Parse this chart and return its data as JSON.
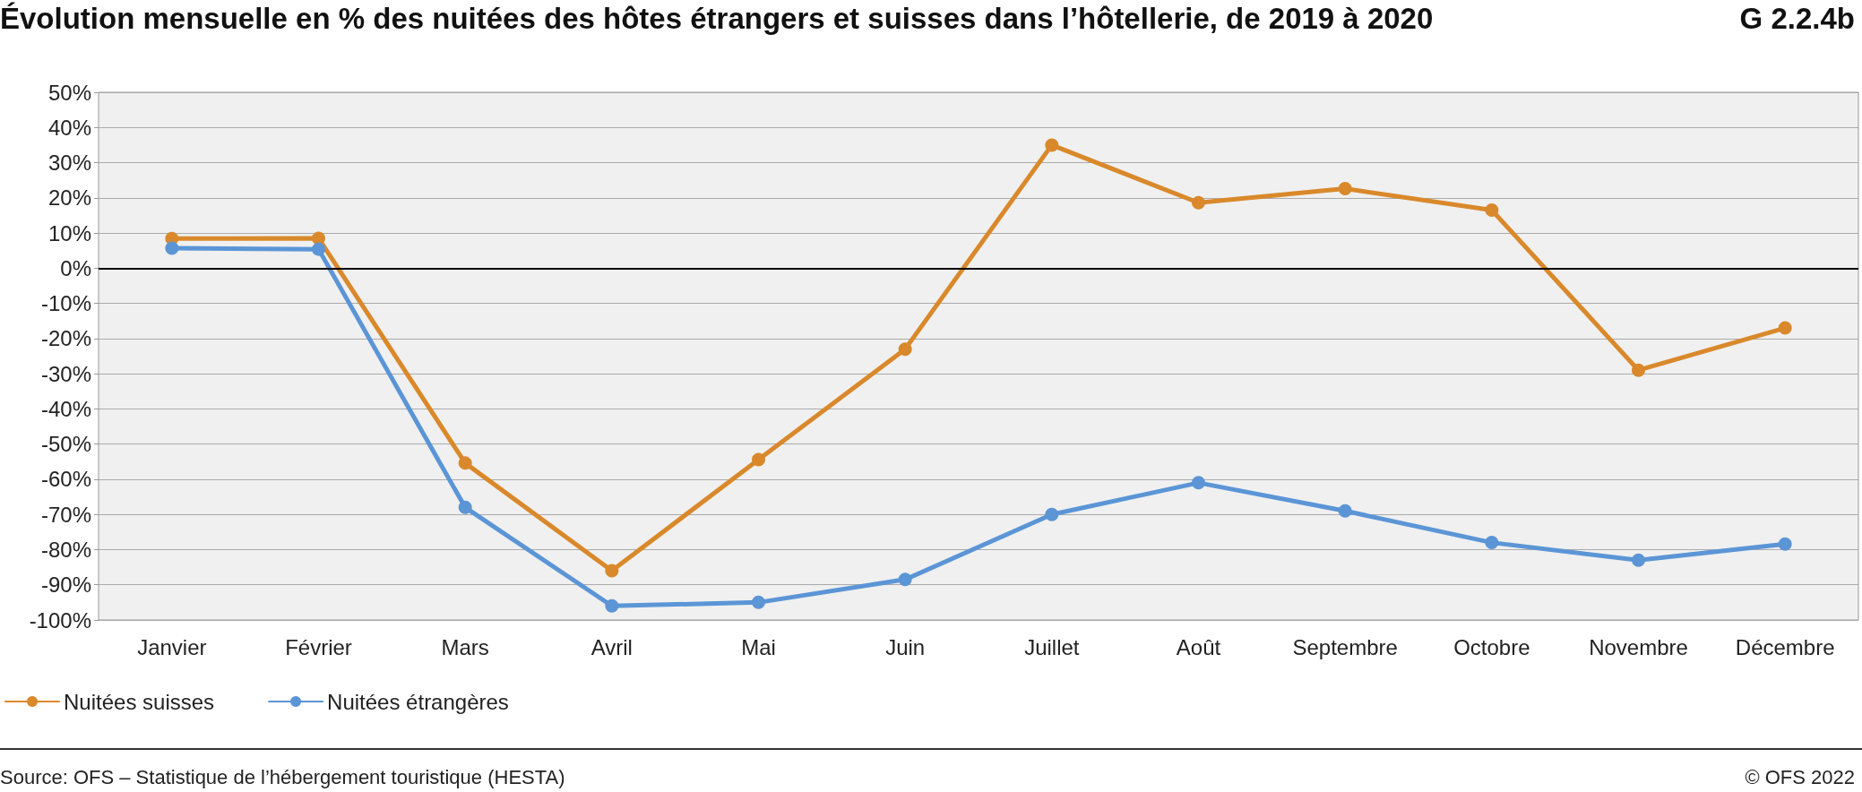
{
  "chart_data": {
    "type": "line",
    "title": "Évolution mensuelle en % des nuitées des hôtes étrangers et suisses dans l’hôtellerie, de 2019 à 2020",
    "subtitle": "G 2.2.4b",
    "categories": [
      "Janvier",
      "Février",
      "Mars",
      "Avril",
      "Mai",
      "Juin",
      "Juillet",
      "Août",
      "Septembre",
      "Octobre",
      "Novembre",
      "Décembre"
    ],
    "series": [
      {
        "name": "Nuitées suisses",
        "color": "#d9892b",
        "values": [
          8.4,
          8.5,
          -55.4,
          -86,
          -54.4,
          -23,
          35,
          18.6,
          22.6,
          16.5,
          -29,
          -17
        ]
      },
      {
        "name": "Nuitées étrangères",
        "color": "#5b95d6",
        "values": [
          5.7,
          5.4,
          -68,
          -96,
          -95,
          -88.5,
          -70,
          -61,
          -69,
          -78,
          -83,
          -78.4
        ]
      }
    ],
    "ylim": [
      -100,
      50
    ],
    "yticks": [
      {
        "value": -100,
        "label": "-100%"
      },
      {
        "value": -90,
        "label": "-90%"
      },
      {
        "value": -80,
        "label": "-80%"
      },
      {
        "value": -70,
        "label": "-70%"
      },
      {
        "value": -60,
        "label": "-60%"
      },
      {
        "value": -50,
        "label": "-50%"
      },
      {
        "value": -40,
        "label": "-40%"
      },
      {
        "value": -30,
        "label": "-30%"
      },
      {
        "value": -20,
        "label": "-20%"
      },
      {
        "value": -10,
        "label": "-10%"
      },
      {
        "value": 0,
        "label": "0%"
      },
      {
        "value": 10,
        "label": "10%"
      },
      {
        "value": 20,
        "label": "20%"
      },
      {
        "value": 30,
        "label": "30%"
      },
      {
        "value": 40,
        "label": "40%"
      },
      {
        "value": 50,
        "label": "50%"
      }
    ],
    "ref_lines": [
      {
        "axis": "y",
        "value": 0,
        "color": "#000000"
      }
    ],
    "grid": "y",
    "legend": "bottom left",
    "marker": "circle",
    "line_style": "solid",
    "annotations": [
      "Source: OFS – Statistique de l’hébergement touristique (HESTA)",
      "© OFS 2022"
    ]
  }
}
